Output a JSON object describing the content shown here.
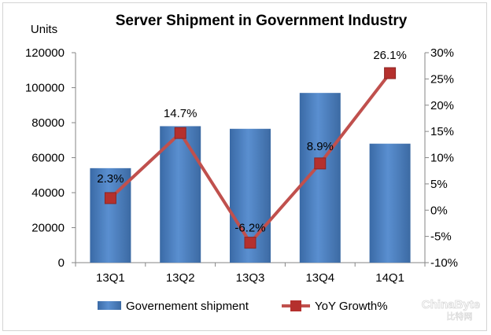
{
  "chart_data": {
    "type": "bar",
    "title": "Server Shipment in Government Industry",
    "ylabel": "Units",
    "categories": [
      "13Q1",
      "13Q2",
      "13Q3",
      "13Q4",
      "14Q1"
    ],
    "series": [
      {
        "name": "Governement shipment",
        "type": "bar",
        "axis": "left",
        "color": "#4f81bd",
        "values": [
          54000,
          78000,
          76500,
          97000,
          68000
        ]
      },
      {
        "name": "YoY Growth%",
        "type": "line",
        "axis": "right",
        "color": "#c0504d",
        "values": [
          2.3,
          14.7,
          -6.2,
          8.9,
          26.1
        ],
        "labels": [
          "2.3%",
          "14.7%",
          "-6.2%",
          "8.9%",
          "26.1%"
        ]
      }
    ],
    "ylim": [
      0,
      120000
    ],
    "yticks": [
      "0",
      "20000",
      "40000",
      "60000",
      "80000",
      "100000",
      "120000"
    ],
    "y2lim": [
      -10,
      30
    ],
    "y2ticks": [
      "-10%",
      "-5%",
      "0%",
      "5%",
      "10%",
      "15%",
      "20%",
      "25%",
      "30%"
    ],
    "grid": false,
    "legend": "bottom"
  },
  "watermark": "ChinaByte 比特网"
}
